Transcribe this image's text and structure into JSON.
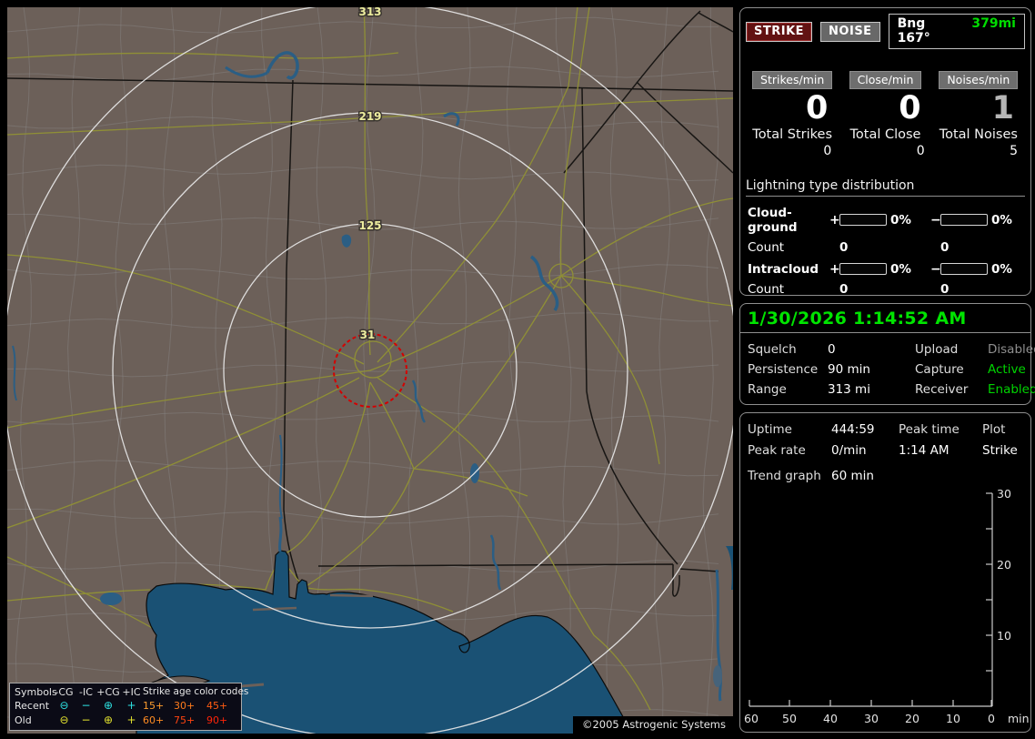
{
  "map": {
    "ring_labels": [
      "313",
      "219",
      "125",
      "31"
    ],
    "legend": {
      "symbols_header": "Symbols",
      "columns": [
        "-CG",
        "-IC",
        "+CG",
        "+IC"
      ],
      "age_header": "Strike age color codes",
      "rows": [
        {
          "label": "Recent",
          "color": "#2ee2e2",
          "symbols": [
            "⊖",
            "−",
            "⊕",
            "+"
          ]
        },
        {
          "label": "Old",
          "color": "#e2e22e",
          "symbols": [
            "⊖",
            "−",
            "⊕",
            "+"
          ]
        }
      ],
      "ages": [
        [
          {
            "text": "15+",
            "color": "#ff9e2e"
          },
          {
            "text": "30+",
            "color": "#ff7c1c"
          },
          {
            "text": "45+",
            "color": "#ff5c12"
          }
        ],
        [
          {
            "text": "60+",
            "color": "#ff8c22"
          },
          {
            "text": "75+",
            "color": "#ff4410"
          },
          {
            "text": "90+",
            "color": "#ff2408"
          }
        ]
      ]
    },
    "copyright": "©2005 Astrogenic Systems"
  },
  "panel": {
    "strike_button": "STRIKE",
    "noise_button": "NOISE",
    "bearing": {
      "label": "Bng 167°",
      "distance": "379mi",
      "distance_color": "#00dc00"
    },
    "counters": [
      {
        "label": "Strikes/min",
        "value": "0",
        "value_color": "#ffffff",
        "total_label": "Total Strikes",
        "total": "0"
      },
      {
        "label": "Close/min",
        "value": "0",
        "value_color": "#ffffff",
        "total_label": "Total Close",
        "total": "0"
      },
      {
        "label": "Noises/min",
        "value": "1",
        "value_color": "#b6b6b6",
        "total_label": "Total Noises",
        "total": "5"
      }
    ],
    "distribution": {
      "header": "Lightning type distribution",
      "rows": [
        {
          "label": "Cloud-ground",
          "plus_sign": "+",
          "plus_pct": "0%",
          "minus_sign": "−",
          "minus_pct": "0%",
          "count_label": "Count",
          "plus_count": "0",
          "minus_count": "0"
        },
        {
          "label": "Intracloud",
          "plus_sign": "+",
          "plus_pct": "0%",
          "minus_sign": "−",
          "minus_pct": "0%",
          "count_label": "Count",
          "plus_count": "0",
          "minus_count": "0"
        }
      ]
    },
    "clock": "1/30/2026 1:14:52 AM",
    "settings": [
      {
        "label": "Squelch",
        "value": "0"
      },
      {
        "label": "Persistence",
        "value": "90 min"
      },
      {
        "label": "Range",
        "value": "313 mi"
      }
    ],
    "status": [
      {
        "label": "Upload",
        "value": "Disabled",
        "color": "#8e8e8e"
      },
      {
        "label": "Capture",
        "value": "Active",
        "color": "#00d400"
      },
      {
        "label": "Receiver",
        "value": "Enabled",
        "color": "#00d400"
      }
    ],
    "stats": {
      "uptime_label": "Uptime",
      "uptime_value": "444:59",
      "peak_time_label": "Peak time",
      "plot_label": "Plot",
      "peak_rate_label": "Peak rate",
      "peak_rate_value": "0/min",
      "peak_time_value": "1:14 AM",
      "plot_value": "Strike",
      "trend_label": "Trend graph",
      "trend_value": "60 min"
    },
    "trend_chart": {
      "y_ticks": [
        "30",
        "20",
        "10"
      ],
      "x_ticks": [
        "60",
        "50",
        "40",
        "30",
        "20",
        "10",
        "0"
      ],
      "x_unit": "min",
      "series": []
    }
  }
}
